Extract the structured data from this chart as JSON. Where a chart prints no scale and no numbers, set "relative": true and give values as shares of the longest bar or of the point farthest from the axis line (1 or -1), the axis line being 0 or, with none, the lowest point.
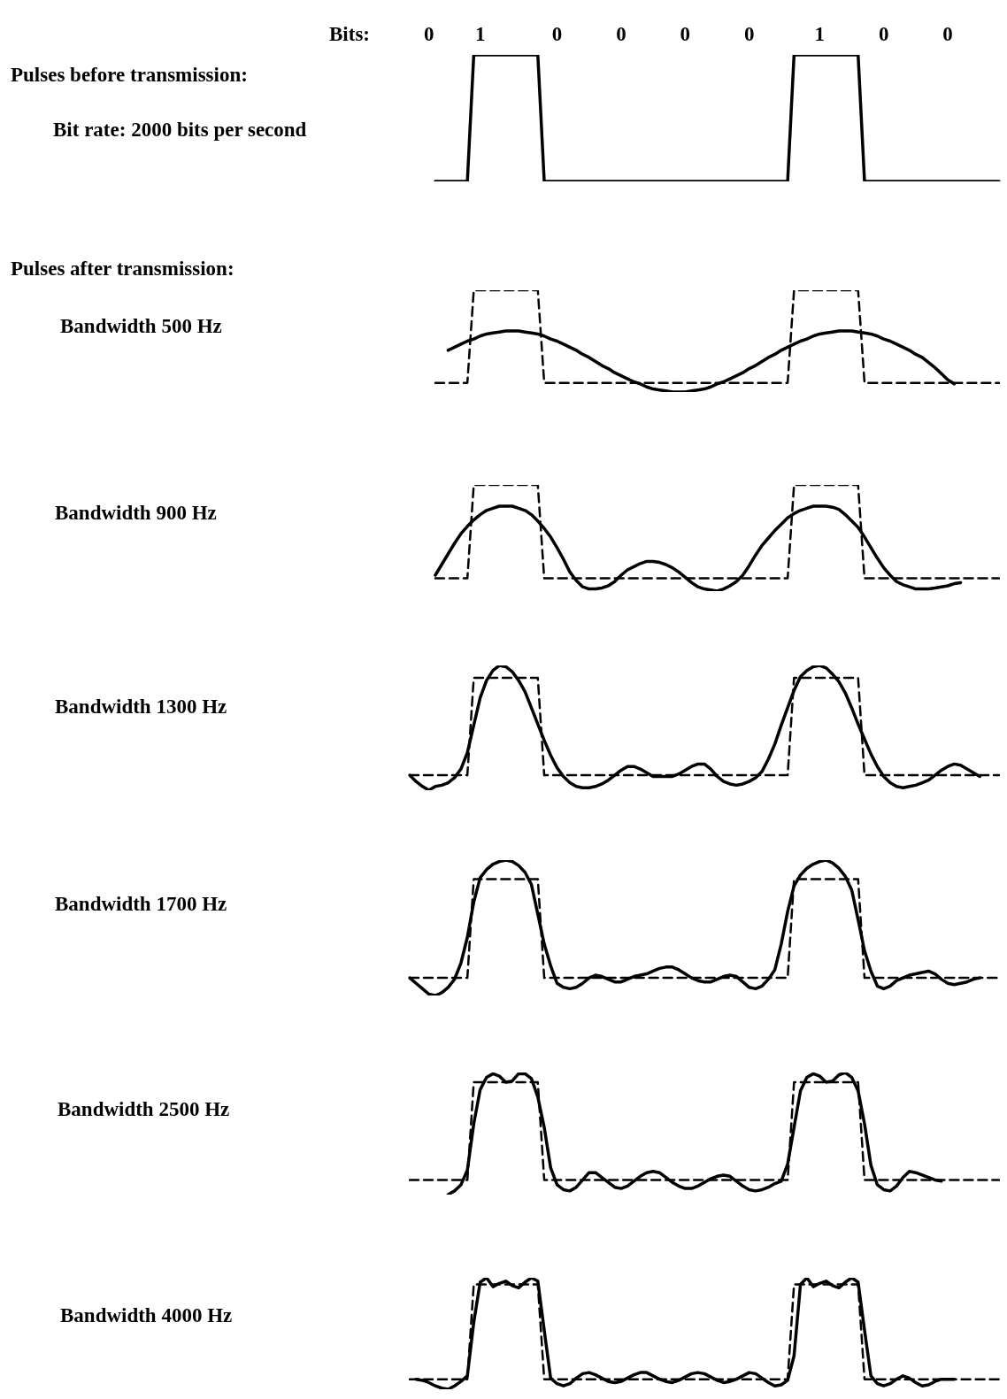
{
  "chart_data": [
    {
      "type": "line",
      "annotations": [
        "Pulses before transmission:"
      ],
      "ylabel": "Bit rate: 2000 bits per second",
      "xlabel": "Bits:",
      "relative": true,
      "marker": "none",
      "tick_labels": "x",
      "categories": [
        null,
        null,
        null,
        "0",
        null,
        null,
        null,
        null,
        null,
        null,
        null,
        "1",
        null,
        null,
        null,
        null,
        null,
        null,
        null,
        null,
        null,
        null,
        null,
        "0",
        null,
        null,
        null,
        null,
        null,
        null,
        null,
        null,
        null,
        "0",
        null,
        null,
        null,
        null,
        null,
        null,
        null,
        null,
        null,
        "0",
        null,
        null,
        null,
        null,
        null,
        null,
        null,
        null,
        null,
        "0",
        null,
        null,
        null,
        null,
        null,
        null,
        null,
        null,
        null,
        null,
        "1",
        null,
        null,
        null,
        null,
        null,
        null,
        null,
        null,
        null,
        "0",
        null,
        null,
        null,
        null,
        null,
        null,
        null,
        null,
        null,
        "0",
        null,
        null,
        null,
        null,
        null,
        null,
        null,
        null
      ],
      "series": [
        {
          "color": "#000000",
          "line_style": "solid",
          "values": [
            null,
            null,
            null,
            null,
            0,
            0,
            0,
            0,
            0,
            0,
            1,
            1,
            1,
            1,
            1,
            1,
            1,
            1,
            1,
            1,
            1,
            0,
            0,
            0,
            0,
            0,
            0,
            0,
            0,
            0,
            0,
            0,
            0,
            0,
            0,
            0,
            0,
            0,
            0,
            0,
            0,
            0,
            0,
            0,
            0,
            0,
            0,
            0,
            0,
            0,
            0,
            0,
            0,
            0,
            0,
            0,
            0,
            0,
            0,
            0,
            1,
            1,
            1,
            1,
            1,
            1,
            1,
            1,
            1,
            1,
            1,
            0,
            0,
            0,
            0,
            0,
            0,
            0,
            0,
            0,
            0,
            0,
            0,
            0,
            0,
            0,
            0,
            0,
            0,
            0,
            0,
            0,
            0
          ]
        }
      ]
    },
    {
      "type": "line",
      "annotations": [
        "Pulses after transmission:"
      ],
      "ylabel": "Bandwidth 500 Hz",
      "relative": true,
      "marker": "none",
      "tick_labels": false,
      "categories": [
        null,
        null,
        null,
        null,
        null,
        null,
        null,
        null,
        null,
        null,
        null,
        null,
        null,
        null,
        null,
        null,
        null,
        null,
        null,
        null,
        null,
        null,
        null,
        null,
        null,
        null,
        null,
        null,
        null,
        null,
        null,
        null,
        null,
        null,
        null,
        null,
        null,
        null,
        null,
        null,
        null,
        null,
        null,
        null,
        null,
        null,
        null,
        null,
        null,
        null,
        null,
        null,
        null,
        null,
        null,
        null,
        null,
        null,
        null,
        null,
        null,
        null,
        null,
        null,
        null,
        null,
        null,
        null,
        null,
        null,
        null,
        null,
        null,
        null,
        null,
        null,
        null,
        null,
        null,
        null,
        null,
        null,
        null,
        null,
        null,
        null,
        null,
        null,
        null,
        null,
        null,
        null,
        null
      ],
      "series": [
        {
          "color": "#000000",
          "line_style": "dashed",
          "values": [
            null,
            null,
            null,
            null,
            0.09,
            0.09,
            0.09,
            0.09,
            0.09,
            0.09,
            1,
            1,
            1,
            1,
            1,
            1,
            1,
            1,
            1,
            1,
            1,
            0.09,
            0.09,
            0.09,
            0.09,
            0.09,
            0.09,
            0.09,
            0.09,
            0.09,
            0.09,
            0.09,
            0.09,
            0.09,
            0.09,
            0.09,
            0.09,
            0.09,
            0.09,
            0.09,
            0.09,
            0.09,
            0.09,
            0.09,
            0.09,
            0.09,
            0.09,
            0.09,
            0.09,
            0.09,
            0.09,
            0.09,
            0.09,
            0.09,
            0.09,
            0.09,
            0.09,
            0.09,
            0.09,
            0.09,
            1,
            1,
            1,
            1,
            1,
            1,
            1,
            1,
            1,
            1,
            1,
            0.09,
            0.09,
            0.09,
            0.09,
            0.09,
            0.09,
            0.09,
            0.09,
            0.09,
            0.09,
            0.09,
            0.09,
            0.09,
            0.09,
            0.09,
            0.09,
            0.09,
            0.09,
            0.09,
            0.09,
            0.09,
            0.09
          ]
        },
        {
          "color": "#000000",
          "line_style": "solid",
          "values": [
            null,
            null,
            null,
            null,
            null,
            null,
            0.41,
            0.44,
            0.47,
            0.5,
            0.52,
            0.55,
            0.57,
            0.58,
            0.59,
            0.6,
            0.6,
            0.6,
            0.59,
            0.58,
            0.57,
            0.55,
            0.52,
            0.5,
            0.47,
            0.44,
            0.41,
            0.37,
            0.34,
            0.3,
            0.26,
            0.23,
            0.19,
            0.16,
            0.13,
            0.1,
            0.08,
            0.05,
            0.03,
            0.02,
            0.01,
            0,
            0,
            0,
            0.01,
            0.02,
            0.03,
            0.05,
            0.08,
            0.1,
            0.13,
            0.16,
            0.19,
            0.23,
            0.26,
            0.3,
            0.34,
            0.37,
            0.41,
            0.44,
            0.47,
            0.5,
            0.52,
            0.55,
            0.57,
            0.58,
            0.59,
            0.6,
            0.6,
            0.6,
            0.59,
            0.58,
            0.57,
            0.55,
            0.52,
            0.5,
            0.47,
            0.44,
            0.41,
            0.37,
            0.34,
            0.29,
            0.24,
            0.18,
            0.12,
            0.08,
            null,
            null,
            null,
            null,
            null,
            null,
            null
          ]
        }
      ]
    },
    {
      "type": "line",
      "ylabel": "Bandwidth 900 Hz",
      "relative": true,
      "marker": "none",
      "tick_labels": false,
      "categories": [
        null,
        null,
        null,
        null,
        null,
        null,
        null,
        null,
        null,
        null,
        null,
        null,
        null,
        null,
        null,
        null,
        null,
        null,
        null,
        null,
        null,
        null,
        null,
        null,
        null,
        null,
        null,
        null,
        null,
        null,
        null,
        null,
        null,
        null,
        null,
        null,
        null,
        null,
        null,
        null,
        null,
        null,
        null,
        null,
        null,
        null,
        null,
        null,
        null,
        null,
        null,
        null,
        null,
        null,
        null,
        null,
        null,
        null,
        null,
        null,
        null,
        null,
        null,
        null,
        null,
        null,
        null,
        null,
        null,
        null,
        null,
        null,
        null,
        null,
        null,
        null,
        null,
        null,
        null,
        null,
        null,
        null,
        null,
        null,
        null,
        null,
        null,
        null,
        null,
        null,
        null,
        null,
        null
      ],
      "series": [
        {
          "color": "#000000",
          "line_style": "dashed",
          "values": [
            null,
            null,
            null,
            null,
            0.12,
            0.12,
            0.12,
            0.12,
            0.12,
            0.12,
            1,
            1,
            1,
            1,
            1,
            1,
            1,
            1,
            1,
            1,
            1,
            0.12,
            0.12,
            0.12,
            0.12,
            0.12,
            0.12,
            0.12,
            0.12,
            0.12,
            0.12,
            0.12,
            0.12,
            0.12,
            0.12,
            0.12,
            0.12,
            0.12,
            0.12,
            0.12,
            0.12,
            0.12,
            0.12,
            0.12,
            0.12,
            0.12,
            0.12,
            0.12,
            0.12,
            0.12,
            0.12,
            0.12,
            0.12,
            0.12,
            0.12,
            0.12,
            0.12,
            0.12,
            0.12,
            0.12,
            1,
            1,
            1,
            1,
            1,
            1,
            1,
            1,
            1,
            1,
            1,
            0.12,
            0.12,
            0.12,
            0.12,
            0.12,
            0.12,
            0.12,
            0.12,
            0.12,
            0.12,
            0.12,
            0.12,
            0.12,
            0.12,
            0.12,
            0.12,
            0.12,
            0.12,
            0.12,
            0.12,
            0.12,
            0.12
          ]
        },
        {
          "color": "#000000",
          "line_style": "solid",
          "values": [
            null,
            null,
            null,
            null,
            0.15,
            0.25,
            0.35,
            0.45,
            0.54,
            0.61,
            0.67,
            0.72,
            0.76,
            0.78,
            0.8,
            0.8,
            0.8,
            0.78,
            0.76,
            0.72,
            0.66,
            0.59,
            0.51,
            0.41,
            0.3,
            0.18,
            0.1,
            0.04,
            0.02,
            0.02,
            0.03,
            0.05,
            0.09,
            0.15,
            0.2,
            0.23,
            0.26,
            0.28,
            0.28,
            0.27,
            0.25,
            0.22,
            0.18,
            0.13,
            0.08,
            0.04,
            0.02,
            0.01,
            0,
            0.02,
            0.05,
            0.09,
            0.15,
            0.24,
            0.34,
            0.43,
            0.5,
            0.57,
            0.63,
            0.69,
            0.73,
            0.76,
            0.78,
            0.8,
            0.8,
            0.8,
            0.79,
            0.77,
            0.72,
            0.66,
            0.6,
            0.51,
            0.41,
            0.31,
            0.22,
            0.15,
            0.09,
            0.06,
            0.04,
            0.02,
            0.02,
            0.02,
            0.03,
            0.04,
            0.05,
            0.07,
            0.08,
            null,
            null,
            null,
            null,
            null,
            null
          ]
        }
      ]
    },
    {
      "type": "line",
      "ylabel": "Bandwidth 1300 Hz",
      "relative": true,
      "marker": "none",
      "tick_labels": false,
      "categories": [
        null,
        null,
        null,
        null,
        null,
        null,
        null,
        null,
        null,
        null,
        null,
        null,
        null,
        null,
        null,
        null,
        null,
        null,
        null,
        null,
        null,
        null,
        null,
        null,
        null,
        null,
        null,
        null,
        null,
        null,
        null,
        null,
        null,
        null,
        null,
        null,
        null,
        null,
        null,
        null,
        null,
        null,
        null,
        null,
        null,
        null,
        null,
        null,
        null,
        null,
        null,
        null,
        null,
        null,
        null,
        null,
        null,
        null,
        null,
        null,
        null,
        null,
        null,
        null,
        null,
        null,
        null,
        null,
        null,
        null,
        null,
        null,
        null,
        null,
        null,
        null,
        null,
        null,
        null,
        null,
        null,
        null,
        null,
        null,
        null,
        null,
        null,
        null,
        null,
        null,
        null,
        null,
        null
      ],
      "series": [
        {
          "color": "#000000",
          "line_style": "dashed",
          "values": [
            0.12,
            0.12,
            0.12,
            0.12,
            0.12,
            0.12,
            0.12,
            0.12,
            0.12,
            0.12,
            0.9,
            0.9,
            0.9,
            0.9,
            0.9,
            0.9,
            0.9,
            0.9,
            0.9,
            0.9,
            0.9,
            0.12,
            0.12,
            0.12,
            0.12,
            0.12,
            0.12,
            0.12,
            0.12,
            0.12,
            0.12,
            0.12,
            0.12,
            0.12,
            0.12,
            0.12,
            0.12,
            0.12,
            0.12,
            0.12,
            0.12,
            0.12,
            0.12,
            0.12,
            0.12,
            0.12,
            0.12,
            0.12,
            0.12,
            0.12,
            0.12,
            0.12,
            0.12,
            0.12,
            0.12,
            0.12,
            0.12,
            0.12,
            0.12,
            0.12,
            0.9,
            0.9,
            0.9,
            0.9,
            0.9,
            0.9,
            0.9,
            0.9,
            0.9,
            0.9,
            0.9,
            0.12,
            0.12,
            0.12,
            0.12,
            0.12,
            0.12,
            0.12,
            0.12,
            0.12,
            0.12,
            0.12,
            0.12,
            0.12,
            0.12,
            0.12,
            0.12,
            0.12,
            0.12,
            0.12,
            0.12,
            0.12,
            0.12
          ]
        },
        {
          "color": "#000000",
          "line_style": "solid",
          "values": [
            0.12,
            0.07,
            0.03,
            0,
            0.03,
            0.04,
            0.06,
            0.1,
            0.17,
            0.3,
            0.52,
            0.74,
            0.88,
            0.96,
            1,
            0.99,
            0.95,
            0.88,
            0.79,
            0.66,
            0.53,
            0.4,
            0.28,
            0.18,
            0.11,
            0.06,
            0.03,
            0.02,
            0.02,
            0.03,
            0.05,
            0.08,
            0.12,
            0.16,
            0.19,
            0.19,
            0.17,
            0.14,
            0.11,
            0.11,
            0.11,
            0.11,
            0.13,
            0.16,
            0.19,
            0.21,
            0.21,
            0.17,
            0.11,
            0.07,
            0.05,
            0.04,
            0.05,
            0.07,
            0.1,
            0.15,
            0.25,
            0.37,
            0.52,
            0.66,
            0.8,
            0.91,
            0.96,
            0.99,
            1,
            0.98,
            0.93,
            0.87,
            0.78,
            0.66,
            0.53,
            0.41,
            0.29,
            0.19,
            0.11,
            0.06,
            0.03,
            0.02,
            0.03,
            0.04,
            0.06,
            0.08,
            0.12,
            0.16,
            0.19,
            0.21,
            0.2,
            0.17,
            0.14,
            0.11,
            null,
            null,
            null
          ]
        }
      ]
    },
    {
      "type": "line",
      "ylabel": "Bandwidth 1700 Hz",
      "relative": true,
      "marker": "none",
      "tick_labels": false,
      "categories": [
        null,
        null,
        null,
        null,
        null,
        null,
        null,
        null,
        null,
        null,
        null,
        null,
        null,
        null,
        null,
        null,
        null,
        null,
        null,
        null,
        null,
        null,
        null,
        null,
        null,
        null,
        null,
        null,
        null,
        null,
        null,
        null,
        null,
        null,
        null,
        null,
        null,
        null,
        null,
        null,
        null,
        null,
        null,
        null,
        null,
        null,
        null,
        null,
        null,
        null,
        null,
        null,
        null,
        null,
        null,
        null,
        null,
        null,
        null,
        null,
        null,
        null,
        null,
        null,
        null,
        null,
        null,
        null,
        null,
        null,
        null,
        null,
        null,
        null,
        null,
        null,
        null,
        null,
        null,
        null,
        null,
        null,
        null,
        null,
        null,
        null,
        null,
        null,
        null,
        null,
        null,
        null,
        null
      ],
      "series": [
        {
          "color": "#000000",
          "line_style": "dashed",
          "values": [
            0.13,
            0.13,
            0.13,
            0.13,
            0.13,
            0.13,
            0.13,
            0.13,
            0.13,
            0.13,
            0.86,
            0.86,
            0.86,
            0.86,
            0.86,
            0.86,
            0.86,
            0.86,
            0.86,
            0.86,
            0.86,
            0.13,
            0.13,
            0.13,
            0.13,
            0.13,
            0.13,
            0.13,
            0.13,
            0.13,
            0.13,
            0.13,
            0.13,
            0.13,
            0.13,
            0.13,
            0.13,
            0.13,
            0.13,
            0.13,
            0.13,
            0.13,
            0.13,
            0.13,
            0.13,
            0.13,
            0.13,
            0.13,
            0.13,
            0.13,
            0.13,
            0.13,
            0.13,
            0.13,
            0.13,
            0.13,
            0.13,
            0.13,
            0.13,
            0.13,
            0.86,
            0.86,
            0.86,
            0.86,
            0.86,
            0.86,
            0.86,
            0.86,
            0.86,
            0.86,
            0.86,
            0.13,
            0.13,
            0.13,
            0.13,
            0.13,
            0.13,
            0.13,
            0.13,
            0.13,
            0.13,
            0.13,
            0.13,
            0.13,
            0.13,
            0.13,
            0.13,
            0.13,
            0.13,
            0.13,
            0.13,
            0.13,
            0.13
          ]
        },
        {
          "color": "#000000",
          "line_style": "solid",
          "values": [
            0.13,
            0.09,
            0.05,
            0.01,
            0,
            0.02,
            0.06,
            0.12,
            0.24,
            0.43,
            0.69,
            0.87,
            0.93,
            0.97,
            0.99,
            1,
            0.99,
            0.96,
            0.91,
            0.82,
            0.6,
            0.38,
            0.22,
            0.09,
            0.06,
            0.05,
            0.06,
            0.09,
            0.13,
            0.15,
            0.14,
            0.12,
            0.1,
            0.1,
            0.12,
            0.14,
            0.15,
            0.16,
            0.18,
            0.2,
            0.21,
            0.21,
            0.19,
            0.16,
            0.13,
            0.11,
            0.1,
            0.1,
            0.12,
            0.14,
            0.15,
            0.14,
            0.1,
            0.06,
            0.05,
            0.07,
            0.12,
            0.19,
            0.38,
            0.62,
            0.81,
            0.89,
            0.94,
            0.97,
            0.99,
            1,
            0.98,
            0.94,
            0.88,
            0.78,
            0.56,
            0.33,
            0.18,
            0.07,
            0.05,
            0.07,
            0.11,
            0.13,
            0.15,
            0.16,
            0.17,
            0.18,
            0.16,
            0.12,
            0.09,
            0.08,
            0.09,
            0.1,
            0.12,
            0.13,
            null,
            null,
            null
          ]
        }
      ]
    },
    {
      "type": "line",
      "ylabel": "Bandwidth 2500 Hz",
      "relative": true,
      "marker": "none",
      "tick_labels": false,
      "categories": [
        null,
        null,
        null,
        null,
        null,
        null,
        null,
        null,
        null,
        null,
        null,
        null,
        null,
        null,
        null,
        null,
        null,
        null,
        null,
        null,
        null,
        null,
        null,
        null,
        null,
        null,
        null,
        null,
        null,
        null,
        null,
        null,
        null,
        null,
        null,
        null,
        null,
        null,
        null,
        null,
        null,
        null,
        null,
        null,
        null,
        null,
        null,
        null,
        null,
        null,
        null,
        null,
        null,
        null,
        null,
        null,
        null,
        null,
        null,
        null,
        null,
        null,
        null,
        null,
        null,
        null,
        null,
        null,
        null,
        null,
        null,
        null,
        null,
        null,
        null,
        null,
        null,
        null,
        null,
        null,
        null,
        null,
        null,
        null,
        null,
        null,
        null,
        null,
        null,
        null,
        null,
        null,
        null
      ],
      "series": [
        {
          "color": "#000000",
          "line_style": "dashed",
          "values": [
            0.12,
            0.12,
            0.12,
            0.12,
            0.12,
            0.12,
            0.12,
            0.12,
            0.12,
            0.12,
            0.92,
            0.92,
            0.92,
            0.92,
            0.92,
            0.92,
            0.92,
            0.92,
            0.92,
            0.92,
            0.92,
            0.12,
            0.12,
            0.12,
            0.12,
            0.12,
            0.12,
            0.12,
            0.12,
            0.12,
            0.12,
            0.12,
            0.12,
            0.12,
            0.12,
            0.12,
            0.12,
            0.12,
            0.12,
            0.12,
            0.12,
            0.12,
            0.12,
            0.12,
            0.12,
            0.12,
            0.12,
            0.12,
            0.12,
            0.12,
            0.12,
            0.12,
            0.12,
            0.12,
            0.12,
            0.12,
            0.12,
            0.12,
            0.12,
            0.12,
            0.92,
            0.92,
            0.92,
            0.92,
            0.92,
            0.92,
            0.92,
            0.92,
            0.92,
            0.92,
            0.92,
            0.12,
            0.12,
            0.12,
            0.12,
            0.12,
            0.12,
            0.12,
            0.12,
            0.12,
            0.12,
            0.12,
            0.12,
            0.12,
            0.12,
            0.12,
            0.12,
            0.12,
            0.12,
            0.12,
            0.12,
            0.12,
            0.12
          ]
        },
        {
          "color": "#000000",
          "line_style": "solid",
          "values": [
            null,
            null,
            null,
            null,
            null,
            null,
            0,
            0.03,
            0.08,
            0.2,
            0.58,
            0.86,
            0.96,
            0.99,
            0.97,
            0.92,
            0.93,
            0.99,
            0.99,
            0.95,
            0.8,
            0.55,
            0.22,
            0.08,
            0.04,
            0.03,
            0.06,
            0.12,
            0.18,
            0.18,
            0.14,
            0.1,
            0.06,
            0.05,
            0.07,
            0.11,
            0.15,
            0.18,
            0.19,
            0.18,
            0.14,
            0.1,
            0.07,
            0.05,
            0.05,
            0.07,
            0.1,
            0.13,
            0.15,
            0.16,
            0.15,
            0.11,
            0.07,
            0.04,
            0.03,
            0.04,
            0.06,
            0.09,
            0.11,
            0.25,
            0.55,
            0.85,
            0.96,
            0.99,
            0.97,
            0.92,
            0.93,
            0.98,
            1,
            0.96,
            0.85,
            0.58,
            0.24,
            0.08,
            0.04,
            0.03,
            0.07,
            0.14,
            0.19,
            0.18,
            0.16,
            0.14,
            0.12,
            0.11,
            null,
            null,
            null,
            null,
            null,
            null,
            null,
            null,
            null
          ]
        }
      ]
    },
    {
      "type": "line",
      "ylabel": "Bandwidth 4000 Hz",
      "relative": true,
      "marker": "none",
      "tick_labels": false,
      "categories": [
        null,
        null,
        null,
        null,
        null,
        null,
        null,
        null,
        null,
        null,
        null,
        null,
        null,
        null,
        null,
        null,
        null,
        null,
        null,
        null,
        null,
        null,
        null,
        null,
        null,
        null,
        null,
        null,
        null,
        null,
        null,
        null,
        null,
        null,
        null,
        null,
        null,
        null,
        null,
        null,
        null,
        null,
        null,
        null,
        null,
        null,
        null,
        null,
        null,
        null,
        null,
        null,
        null,
        null,
        null,
        null,
        null,
        null,
        null,
        null,
        null,
        null,
        null,
        null,
        null,
        null,
        null,
        null,
        null,
        null,
        null,
        null,
        null,
        null,
        null,
        null,
        null,
        null,
        null,
        null,
        null,
        null,
        null,
        null,
        null,
        null,
        null,
        null,
        null,
        null,
        null,
        null,
        null
      ],
      "series": [
        {
          "color": "#000000",
          "line_style": "dashed",
          "values": [
            0.09,
            0.09,
            0.09,
            0.09,
            0.09,
            0.09,
            0.09,
            0.09,
            0.09,
            0.09,
            0.94,
            0.94,
            0.94,
            0.94,
            0.94,
            0.94,
            0.94,
            0.94,
            0.94,
            0.94,
            0.94,
            0.09,
            0.09,
            0.09,
            0.09,
            0.09,
            0.09,
            0.09,
            0.09,
            0.09,
            0.09,
            0.09,
            0.09,
            0.09,
            0.09,
            0.09,
            0.09,
            0.09,
            0.09,
            0.09,
            0.09,
            0.09,
            0.09,
            0.09,
            0.09,
            0.09,
            0.09,
            0.09,
            0.09,
            0.09,
            0.09,
            0.09,
            0.09,
            0.09,
            0.09,
            0.09,
            0.09,
            0.09,
            0.09,
            0.09,
            0.94,
            0.94,
            0.94,
            0.94,
            0.94,
            0.94,
            0.94,
            0.94,
            0.94,
            0.94,
            0.94,
            0.09,
            0.09,
            0.09,
            0.09,
            0.09,
            0.09,
            0.09,
            0.09,
            0.09,
            0.09,
            0.09,
            0.09,
            0.09,
            0.09,
            0.09,
            0.09,
            0.09,
            0.09,
            0.09,
            0.09,
            0.09,
            0.09
          ]
        },
        {
          "color": "#000000",
          "line_style": "solid",
          "values": [
            null,
            0.09,
            0.08,
            0.06,
            0.03,
            0.01,
            0,
            0.03,
            0.07,
            0.12,
            0.6,
            0.96,
            1,
            0.92,
            0.95,
            0.97,
            0.93,
            0.91,
            0.96,
            1,
            0.97,
            0.53,
            0.1,
            0.05,
            0.03,
            0.05,
            0.1,
            0.14,
            0.15,
            0.13,
            0.1,
            0.07,
            0.06,
            0.07,
            0.1,
            0.13,
            0.15,
            0.15,
            0.12,
            0.09,
            0.07,
            0.06,
            0.08,
            0.11,
            0.14,
            0.15,
            0.14,
            0.11,
            0.08,
            0.06,
            0.07,
            0.09,
            0.12,
            0.15,
            0.14,
            0.1,
            0.06,
            0.03,
            0.04,
            0.08,
            0.3,
            0.94,
            1,
            0.92,
            0.95,
            0.97,
            0.93,
            0.91,
            0.96,
            1,
            0.96,
            0.53,
            0.12,
            0.05,
            0.03,
            0.05,
            0.09,
            0.12,
            0.1,
            0.06,
            0.03,
            0.04,
            0.07,
            0.09,
            0.09,
            0.09,
            null,
            null,
            null,
            null,
            null,
            null,
            null
          ]
        }
      ]
    }
  ]
}
